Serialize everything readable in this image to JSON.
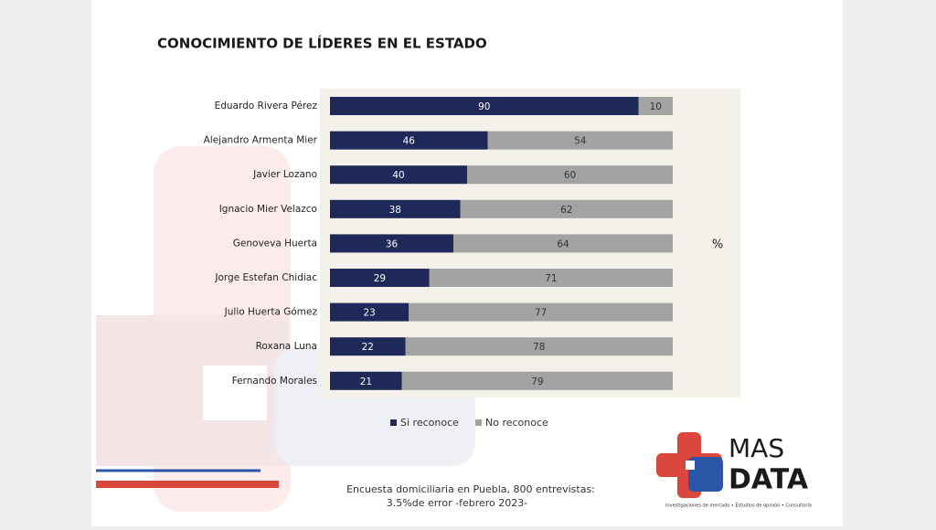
{
  "chart_data": {
    "type": "stacked_barh",
    "title": "CONOCIMIENTO DE LÍDERES EN EL ESTADO",
    "unit_label": "%",
    "categories": [
      "Eduardo Rivera Pérez",
      "Alejandro Armenta Mier",
      "Javier Lozano",
      "Ignacio Mier Velazco",
      "Genoveva Huerta",
      "Jorge Estefan Chidiac",
      "Julio Huerta Gómez",
      "Roxana Luna",
      "Fernando Morales"
    ],
    "series": [
      {
        "name": "Si reconoce",
        "color": "#1e2859",
        "values": [
          90,
          46,
          40,
          38,
          36,
          29,
          23,
          22,
          21
        ]
      },
      {
        "name": "No reconoce",
        "color": "#a3a3a3",
        "values": [
          10,
          54,
          60,
          62,
          64,
          71,
          77,
          78,
          79
        ]
      }
    ],
    "xlim": [
      0,
      100
    ],
    "legend": "bottom",
    "annotations": [
      "Encuesta domiciliaria en Puebla, 800 entrevistas:",
      "3.5%de error -febrero 2023-"
    ]
  },
  "logo": {
    "line1": "MAS",
    "line2": "DATA",
    "tagline": "Investigaciones de mercado • Estudios de opinión • Consultoría"
  }
}
